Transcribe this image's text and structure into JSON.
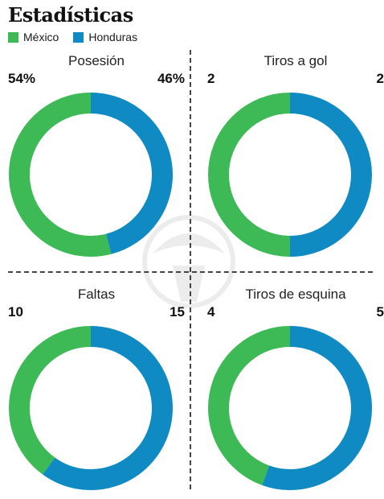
{
  "title": "Estadísticas",
  "colors": {
    "mexico": "#3dba55",
    "honduras": "#0f8ac3"
  },
  "legend": [
    {
      "label": "México",
      "color": "#3dba55"
    },
    {
      "label": "Honduras",
      "color": "#0f8ac3"
    }
  ],
  "chart_data": [
    {
      "type": "pie",
      "title": "Posesión",
      "series": [
        {
          "name": "México",
          "value": 54,
          "label": "54%"
        },
        {
          "name": "Honduras",
          "value": 46,
          "label": "46%"
        }
      ]
    },
    {
      "type": "pie",
      "title": "Tiros a gol",
      "series": [
        {
          "name": "México",
          "value": 2,
          "label": "2"
        },
        {
          "name": "Honduras",
          "value": 2,
          "label": "2"
        }
      ]
    },
    {
      "type": "pie",
      "title": "Faltas",
      "series": [
        {
          "name": "México",
          "value": 10,
          "label": "10"
        },
        {
          "name": "Honduras",
          "value": 15,
          "label": "15"
        }
      ]
    },
    {
      "type": "pie",
      "title": "Tiros de esquina",
      "series": [
        {
          "name": "México",
          "value": 4,
          "label": "4"
        },
        {
          "name": "Honduras",
          "value": 5,
          "label": "5"
        }
      ]
    }
  ]
}
